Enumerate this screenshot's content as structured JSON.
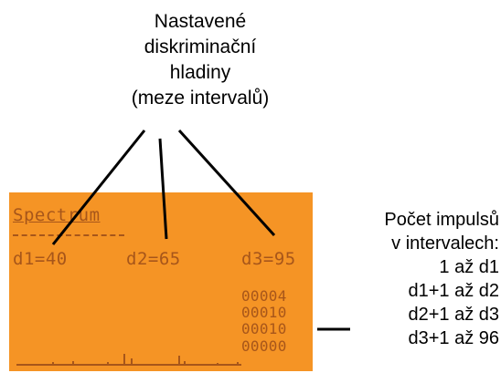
{
  "top_label": {
    "lines": [
      "Nastavené",
      "diskriminační",
      "hladiny",
      "(meze intervalů)"
    ]
  },
  "lcd": {
    "title": "Spectrum",
    "thresholds": [
      "d1=40",
      "d2=65",
      "d3=95"
    ],
    "counts": [
      "00004",
      "00010",
      "00010",
      "00000"
    ],
    "background_color": "#f59425",
    "text_color": "#a7561a"
  },
  "right_label": {
    "lines": [
      "Počet impulsů",
      "v intervalech:",
      "1 až d1",
      "d1+1 až d2",
      "d2+1 až d3",
      "d3+1 až 96"
    ]
  }
}
